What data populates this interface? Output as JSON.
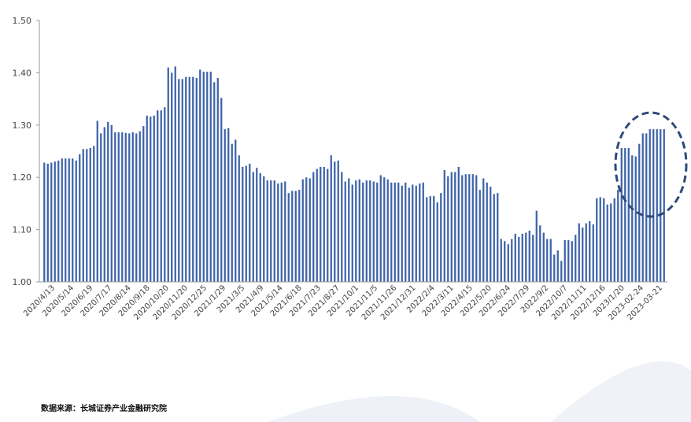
{
  "source_text": "数据来源：长城证券产业金融研究院",
  "colors": {
    "bar": "#3d63a8",
    "axis": "#9a9a9a",
    "circle": "#2e4a7a"
  },
  "chart_data": {
    "type": "bar",
    "ylim": [
      1.0,
      1.5
    ],
    "yticks": [
      "1.00",
      "1.10",
      "1.20",
      "1.30",
      "1.40",
      "1.50"
    ],
    "xtick_labels": [
      "2020/4/13",
      "2020/5/14",
      "2020/6/19",
      "2020/7/17",
      "2020/8/14",
      "2020/9/18",
      "2020/10/20",
      "2020/11/20",
      "2020/12/25",
      "2021/1/29",
      "2021/3/5",
      "2021/4/9",
      "2021/5/14",
      "2021/6/18",
      "2021/7/23",
      "2021/8/27",
      "2021/10/1",
      "2021/11/5",
      "2021/11/26",
      "2021/12/31",
      "2022/2/4",
      "2022/3/11",
      "2022/4/15",
      "2022/5/20",
      "2022/6/24",
      "2022/7/29",
      "2022/9/2",
      "2022/10/7",
      "2022/11/11",
      "2022/12/16",
      "2023/1/20",
      "2023-02-24",
      "2023-03-21"
    ],
    "values": [
      1.228,
      1.226,
      1.228,
      1.23,
      1.232,
      1.236,
      1.236,
      1.236,
      1.236,
      1.232,
      1.244,
      1.254,
      1.254,
      1.256,
      1.26,
      1.308,
      1.284,
      1.296,
      1.306,
      1.3,
      1.286,
      1.286,
      1.286,
      1.285,
      1.284,
      1.286,
      1.284,
      1.288,
      1.298,
      1.318,
      1.316,
      1.318,
      1.328,
      1.328,
      1.334,
      1.41,
      1.4,
      1.412,
      1.388,
      1.388,
      1.392,
      1.392,
      1.392,
      1.39,
      1.406,
      1.402,
      1.402,
      1.402,
      1.382,
      1.39,
      1.352,
      1.292,
      1.294,
      1.264,
      1.272,
      1.242,
      1.22,
      1.222,
      1.226,
      1.21,
      1.218,
      1.208,
      1.202,
      1.194,
      1.194,
      1.194,
      1.188,
      1.19,
      1.192,
      1.17,
      1.174,
      1.174,
      1.176,
      1.196,
      1.2,
      1.198,
      1.21,
      1.216,
      1.22,
      1.22,
      1.216,
      1.242,
      1.23,
      1.232,
      1.21,
      1.192,
      1.198,
      1.186,
      1.194,
      1.196,
      1.19,
      1.194,
      1.194,
      1.192,
      1.19,
      1.204,
      1.2,
      1.196,
      1.19,
      1.19,
      1.19,
      1.184,
      1.19,
      1.18,
      1.186,
      1.184,
      1.188,
      1.19,
      1.162,
      1.164,
      1.164,
      1.152,
      1.17,
      1.214,
      1.202,
      1.21,
      1.21,
      1.22,
      1.204,
      1.206,
      1.206,
      1.206,
      1.204,
      1.176,
      1.198,
      1.19,
      1.182,
      1.168,
      1.17,
      1.082,
      1.078,
      1.072,
      1.082,
      1.092,
      1.086,
      1.092,
      1.094,
      1.098,
      1.09,
      1.136,
      1.108,
      1.094,
      1.082,
      1.082,
      1.052,
      1.06,
      1.04,
      1.08,
      1.08,
      1.078,
      1.09,
      1.112,
      1.104,
      1.112,
      1.116,
      1.11,
      1.16,
      1.162,
      1.16,
      1.148,
      1.15,
      1.16,
      1.176,
      1.256,
      1.256,
      1.256,
      1.242,
      1.24,
      1.264,
      1.284,
      1.284,
      1.292,
      1.292,
      1.292,
      1.292,
      1.292
    ]
  }
}
